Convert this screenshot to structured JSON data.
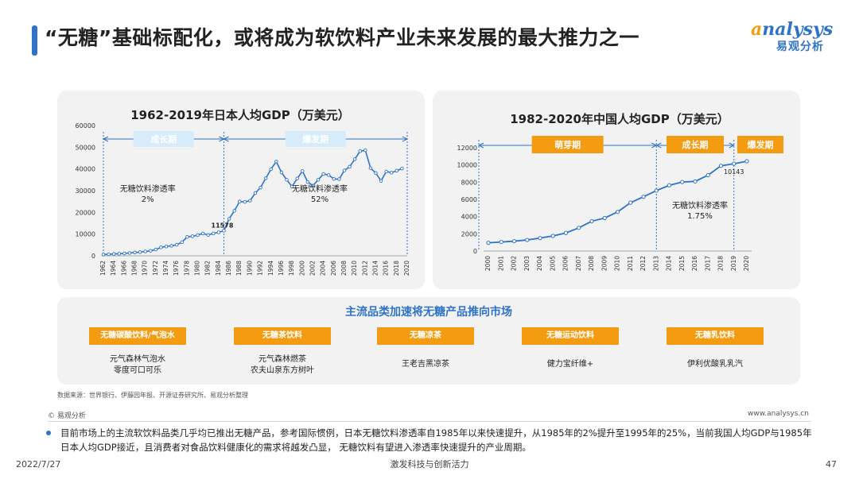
{
  "header": {
    "title": "“无糖”基础标配化，或将成为软饮料产业未来发展的最大推力之一",
    "logo_en_a": "a",
    "logo_en_rest": "nalysys",
    "logo_cn": "易观分析"
  },
  "japan": {
    "periods": [
      "成长期",
      "爆发期"
    ],
    "penetration_labels": [
      "无糖饮料渗透率\n2%",
      "无糖饮料渗透率\n52%"
    ]
  },
  "china": {
    "periods": [
      "萌芽期",
      "成长期",
      "爆发期"
    ],
    "penetration_label": "无糖饮料渗透率\n1.75%"
  },
  "chart_data": [
    {
      "type": "line",
      "title": "1962-2019年日本人均GDP（万美元）",
      "xlabel": "",
      "ylabel": "",
      "ylim": [
        0,
        60000
      ],
      "yticks": [
        0,
        10000,
        20000,
        30000,
        40000,
        50000,
        60000
      ],
      "xticks": [
        "1962",
        "1964",
        "1966",
        "1968",
        "1970",
        "1972",
        "1974",
        "1976",
        "1978",
        "1980",
        "1982",
        "1984",
        "1986",
        "1988",
        "1990",
        "1992",
        "1994",
        "1996",
        "1998",
        "2000",
        "2002",
        "2004",
        "2006",
        "2008",
        "2010",
        "2012",
        "2014",
        "2016",
        "2018",
        "2020"
      ],
      "x": [
        1962,
        1963,
        1964,
        1965,
        1966,
        1967,
        1968,
        1969,
        1970,
        1971,
        1972,
        1973,
        1974,
        1975,
        1976,
        1977,
        1978,
        1979,
        1980,
        1981,
        1982,
        1983,
        1984,
        1985,
        1986,
        1987,
        1988,
        1989,
        1990,
        1991,
        1992,
        1993,
        1994,
        1995,
        1996,
        1997,
        1998,
        1999,
        2000,
        2001,
        2002,
        2003,
        2004,
        2005,
        2006,
        2007,
        2008,
        2009,
        2010,
        2011,
        2012,
        2013,
        2014,
        2015,
        2016,
        2017,
        2018,
        2019
      ],
      "series": [
        {
          "values": [
            600,
            700,
            850,
            950,
            1100,
            1300,
            1500,
            1700,
            2000,
            2300,
            2900,
            3900,
            4300,
            4600,
            5100,
            6300,
            8700,
            9000,
            9500,
            10300,
            9600,
            10300,
            10800,
            11578,
            17000,
            20700,
            25000,
            24800,
            25400,
            28900,
            31400,
            35700,
            39900,
            43400,
            38400,
            35000,
            31900,
            35600,
            39000,
            34000,
            32300,
            35000,
            37700,
            37200,
            35400,
            35300,
            39300,
            41000,
            44500,
            48200,
            48600,
            40400,
            38100,
            34500,
            38800,
            38300,
            39200,
            40200
          ]
        }
      ],
      "annotations": [
        {
          "x": 1985,
          "y": 11578,
          "text": "11578"
        }
      ],
      "period_dividers": [
        1985
      ]
    },
    {
      "type": "line",
      "title": "1982-2020年中国人均GDP（万美元）",
      "xlabel": "",
      "ylabel": "",
      "ylim": [
        0,
        12000
      ],
      "yticks": [
        0,
        2000,
        4000,
        6000,
        8000,
        10000,
        12000
      ],
      "x": [
        2000,
        2001,
        2002,
        2003,
        2004,
        2005,
        2006,
        2007,
        2008,
        2009,
        2010,
        2011,
        2012,
        2013,
        2014,
        2015,
        2016,
        2017,
        2018,
        2019,
        2020
      ],
      "series": [
        {
          "values": [
            959,
            1053,
            1148,
            1288,
            1508,
            1753,
            2099,
            2694,
            3468,
            3832,
            4550,
            5618,
            6301,
            7020,
            7636,
            8016,
            8094,
            8817,
            9905,
            10143,
            10435
          ]
        }
      ],
      "annotations": [
        {
          "x": 2019,
          "y": 10143,
          "text": "10143"
        }
      ],
      "period_dividers": [
        2013,
        2019
      ]
    }
  ],
  "market": {
    "title": "主流品类加速将无糖产品推向市场",
    "categories": [
      {
        "label": "无糖碳酸饮料/气泡水",
        "brands": "元气森林气泡水\n零度可口可乐"
      },
      {
        "label": "无糖茶饮料",
        "brands": "元气森林燃茶\n农夫山泉东方树叶"
      },
      {
        "label": "无糖凉茶",
        "brands": "王老吉黑凉茶"
      },
      {
        "label": "无糖运动饮料",
        "brands": "健力宝纤维+"
      },
      {
        "label": "无糖乳饮料",
        "brands": "伊利优酸乳乳汽"
      }
    ]
  },
  "footer": {
    "source": "数据来源：世界银行、伊藤园年报、开源证券研究所、易观分析整理",
    "copyright": "© 易观分析",
    "site": "www.analysys.cn",
    "note": "目前市场上的主流软饮料品类几乎均已推出无糖产品，参考国际惯例，日本无糖饮料渗透率自1985年以来快速提升，从1985年的2%提升至1995年的25%，当前我国人均GDP与1985年日本人均GDP接近，且消费者对食品饮料健康化的需求将越发凸显， 无糖饮料有望进入渗透率快速提升的产业周期。",
    "date": "2022/7/27",
    "middle": "激发科技与创新活力",
    "page": "47"
  },
  "colors": {
    "accent_blue": "#2f73c9",
    "orange": "#f39c12",
    "period_box": "#d6ecfa"
  }
}
